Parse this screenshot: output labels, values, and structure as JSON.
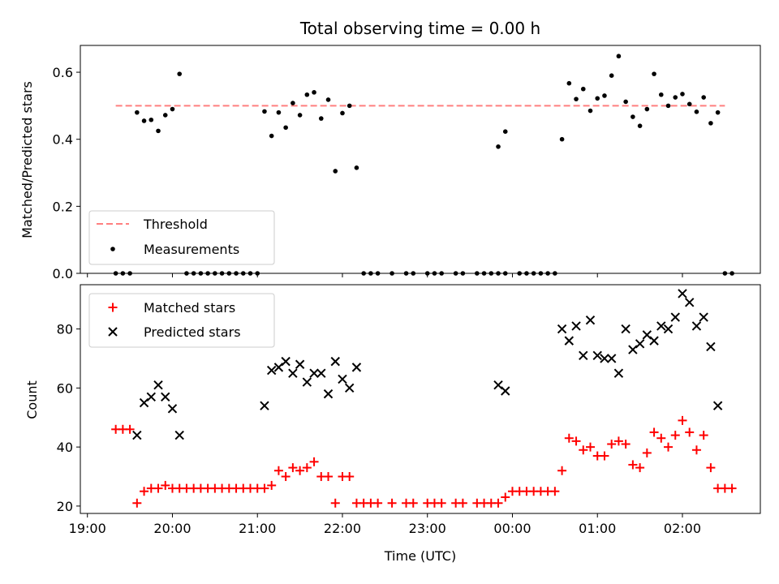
{
  "figure": {
    "title": "Total observing time = 0.00 h",
    "xlabel": "Time (UTC)"
  },
  "legend_top": {
    "threshold_label": "Threshold",
    "measurements_label": "Measurements"
  },
  "legend_bottom": {
    "matched_label": "Matched stars",
    "predicted_label": "Predicted stars"
  },
  "colors": {
    "threshold": "#ff7f7f",
    "measurements": "#000000",
    "matched": "#ff0000",
    "predicted": "#000000"
  },
  "chart_data": [
    {
      "type": "scatter",
      "title": "Total observing time = 0.00 h",
      "xlabel": "",
      "ylabel": "Matched/Predicted stars",
      "xlim": [
        "18:55",
        "02:55"
      ],
      "ylim": [
        0,
        0.68
      ],
      "yticks": [
        0.0,
        0.2,
        0.4,
        0.6
      ],
      "xticks": [
        "19:00",
        "20:00",
        "21:00",
        "22:00",
        "23:00",
        "00:00",
        "01:00",
        "02:00"
      ],
      "threshold": 0.5,
      "threshold_range": [
        "19:20",
        "02:30"
      ],
      "grid": false,
      "legend": "lower-left",
      "series": [
        {
          "name": "Measurements",
          "points": [
            [
              "19:20",
              0.0
            ],
            [
              "19:25",
              0.0
            ],
            [
              "19:30",
              0.0
            ],
            [
              "19:35",
              0.48
            ],
            [
              "19:40",
              0.455
            ],
            [
              "19:45",
              0.458
            ],
            [
              "19:50",
              0.425
            ],
            [
              "19:55",
              0.472
            ],
            [
              "20:00",
              0.49
            ],
            [
              "20:05",
              0.595
            ],
            [
              "20:10",
              0.0
            ],
            [
              "20:15",
              0.0
            ],
            [
              "20:20",
              0.0
            ],
            [
              "20:25",
              0.0
            ],
            [
              "20:30",
              0.0
            ],
            [
              "20:35",
              0.0
            ],
            [
              "20:40",
              0.0
            ],
            [
              "20:45",
              0.0
            ],
            [
              "20:50",
              0.0
            ],
            [
              "20:55",
              0.0
            ],
            [
              "21:00",
              0.0
            ],
            [
              "21:05",
              0.483
            ],
            [
              "21:10",
              0.41
            ],
            [
              "21:15",
              0.48
            ],
            [
              "21:20",
              0.435
            ],
            [
              "21:25",
              0.508
            ],
            [
              "21:30",
              0.472
            ],
            [
              "21:35",
              0.533
            ],
            [
              "21:40",
              0.54
            ],
            [
              "21:45",
              0.462
            ],
            [
              "21:50",
              0.518
            ],
            [
              "21:55",
              0.305
            ],
            [
              "22:00",
              0.478
            ],
            [
              "22:05",
              0.5
            ],
            [
              "22:10",
              0.315
            ],
            [
              "22:15",
              0.0
            ],
            [
              "22:20",
              0.0
            ],
            [
              "22:25",
              0.0
            ],
            [
              "22:35",
              0.0
            ],
            [
              "22:45",
              0.0
            ],
            [
              "22:50",
              0.0
            ],
            [
              "23:00",
              0.0
            ],
            [
              "23:05",
              0.0
            ],
            [
              "23:10",
              0.0
            ],
            [
              "23:20",
              0.0
            ],
            [
              "23:25",
              0.0
            ],
            [
              "23:35",
              0.0
            ],
            [
              "23:40",
              0.0
            ],
            [
              "23:45",
              0.0
            ],
            [
              "23:50",
              0.0
            ],
            [
              "23:55",
              0.0
            ],
            [
              "23:50",
              0.378
            ],
            [
              "23:55",
              0.423
            ],
            [
              "00:05",
              0.0
            ],
            [
              "00:10",
              0.0
            ],
            [
              "00:15",
              0.0
            ],
            [
              "00:20",
              0.0
            ],
            [
              "00:25",
              0.0
            ],
            [
              "00:30",
              0.0
            ],
            [
              "00:35",
              0.4
            ],
            [
              "00:40",
              0.567
            ],
            [
              "00:45",
              0.52
            ],
            [
              "00:50",
              0.55
            ],
            [
              "00:55",
              0.485
            ],
            [
              "01:00",
              0.522
            ],
            [
              "01:05",
              0.53
            ],
            [
              "01:10",
              0.59
            ],
            [
              "01:15",
              0.648
            ],
            [
              "01:20",
              0.512
            ],
            [
              "01:25",
              0.467
            ],
            [
              "01:30",
              0.44
            ],
            [
              "01:35",
              0.49
            ],
            [
              "01:40",
              0.595
            ],
            [
              "01:45",
              0.533
            ],
            [
              "01:50",
              0.5
            ],
            [
              "01:55",
              0.525
            ],
            [
              "02:00",
              0.535
            ],
            [
              "02:05",
              0.505
            ],
            [
              "02:10",
              0.482
            ],
            [
              "02:15",
              0.525
            ],
            [
              "02:20",
              0.448
            ],
            [
              "02:25",
              0.48
            ],
            [
              "02:30",
              0.0
            ],
            [
              "02:35",
              0.0
            ]
          ]
        }
      ]
    },
    {
      "type": "scatter",
      "xlabel": "Time (UTC)",
      "ylabel": "Count",
      "xlim": [
        "18:55",
        "02:55"
      ],
      "ylim": [
        17.5,
        95
      ],
      "yticks": [
        20,
        40,
        60,
        80
      ],
      "xticks": [
        "19:00",
        "20:00",
        "21:00",
        "22:00",
        "23:00",
        "00:00",
        "01:00",
        "02:00"
      ],
      "grid": false,
      "legend": "top-left",
      "series": [
        {
          "name": "Matched stars",
          "points": [
            [
              "19:20",
              46
            ],
            [
              "19:25",
              46
            ],
            [
              "19:30",
              46
            ],
            [
              "19:35",
              21
            ],
            [
              "19:40",
              25
            ],
            [
              "19:45",
              26
            ],
            [
              "19:50",
              26
            ],
            [
              "19:55",
              27
            ],
            [
              "20:00",
              26
            ],
            [
              "20:05",
              26
            ],
            [
              "20:10",
              26
            ],
            [
              "20:15",
              26
            ],
            [
              "20:20",
              26
            ],
            [
              "20:25",
              26
            ],
            [
              "20:30",
              26
            ],
            [
              "20:35",
              26
            ],
            [
              "20:40",
              26
            ],
            [
              "20:45",
              26
            ],
            [
              "20:50",
              26
            ],
            [
              "20:55",
              26
            ],
            [
              "21:00",
              26
            ],
            [
              "21:05",
              26
            ],
            [
              "21:10",
              27
            ],
            [
              "21:15",
              32
            ],
            [
              "21:20",
              30
            ],
            [
              "21:25",
              33
            ],
            [
              "21:30",
              32
            ],
            [
              "21:35",
              33
            ],
            [
              "21:40",
              35
            ],
            [
              "21:45",
              30
            ],
            [
              "21:50",
              30
            ],
            [
              "21:55",
              21
            ],
            [
              "22:00",
              30
            ],
            [
              "22:05",
              30
            ],
            [
              "22:10",
              21
            ],
            [
              "22:15",
              21
            ],
            [
              "22:20",
              21
            ],
            [
              "22:25",
              21
            ],
            [
              "22:35",
              21
            ],
            [
              "22:45",
              21
            ],
            [
              "22:50",
              21
            ],
            [
              "23:00",
              21
            ],
            [
              "23:05",
              21
            ],
            [
              "23:10",
              21
            ],
            [
              "23:20",
              21
            ],
            [
              "23:25",
              21
            ],
            [
              "23:35",
              21
            ],
            [
              "23:40",
              21
            ],
            [
              "23:45",
              21
            ],
            [
              "23:50",
              21
            ],
            [
              "23:55",
              23
            ],
            [
              "00:00",
              25
            ],
            [
              "00:05",
              25
            ],
            [
              "00:10",
              25
            ],
            [
              "00:15",
              25
            ],
            [
              "00:20",
              25
            ],
            [
              "00:25",
              25
            ],
            [
              "00:30",
              25
            ],
            [
              "00:35",
              32
            ],
            [
              "00:40",
              43
            ],
            [
              "00:45",
              42
            ],
            [
              "00:50",
              39
            ],
            [
              "00:55",
              40
            ],
            [
              "01:00",
              37
            ],
            [
              "01:05",
              37
            ],
            [
              "01:10",
              41
            ],
            [
              "01:15",
              42
            ],
            [
              "01:20",
              41
            ],
            [
              "01:25",
              34
            ],
            [
              "01:30",
              33
            ],
            [
              "01:35",
              38
            ],
            [
              "01:40",
              45
            ],
            [
              "01:45",
              43
            ],
            [
              "01:50",
              40
            ],
            [
              "01:55",
              44
            ],
            [
              "02:00",
              49
            ],
            [
              "02:05",
              45
            ],
            [
              "02:10",
              39
            ],
            [
              "02:15",
              44
            ],
            [
              "02:20",
              33
            ],
            [
              "02:25",
              26
            ],
            [
              "02:30",
              26
            ],
            [
              "02:35",
              26
            ]
          ]
        },
        {
          "name": "Predicted stars",
          "points": [
            [
              "19:35",
              44
            ],
            [
              "19:40",
              55
            ],
            [
              "19:45",
              57
            ],
            [
              "19:50",
              61
            ],
            [
              "19:55",
              57
            ],
            [
              "20:00",
              53
            ],
            [
              "20:05",
              44
            ],
            [
              "21:05",
              54
            ],
            [
              "21:10",
              66
            ],
            [
              "21:15",
              67
            ],
            [
              "21:20",
              69
            ],
            [
              "21:25",
              65
            ],
            [
              "21:30",
              68
            ],
            [
              "21:35",
              62
            ],
            [
              "21:40",
              65
            ],
            [
              "21:45",
              65
            ],
            [
              "21:50",
              58
            ],
            [
              "21:55",
              69
            ],
            [
              "22:00",
              63
            ],
            [
              "22:05",
              60
            ],
            [
              "22:10",
              67
            ],
            [
              "23:50",
              61
            ],
            [
              "23:55",
              59
            ],
            [
              "00:35",
              80
            ],
            [
              "00:40",
              76
            ],
            [
              "00:45",
              81
            ],
            [
              "00:50",
              71
            ],
            [
              "00:55",
              83
            ],
            [
              "01:00",
              71
            ],
            [
              "01:05",
              70
            ],
            [
              "01:10",
              70
            ],
            [
              "01:15",
              65
            ],
            [
              "01:20",
              80
            ],
            [
              "01:25",
              73
            ],
            [
              "01:30",
              75
            ],
            [
              "01:35",
              78
            ],
            [
              "01:40",
              76
            ],
            [
              "01:45",
              81
            ],
            [
              "01:50",
              80
            ],
            [
              "01:55",
              84
            ],
            [
              "02:00",
              92
            ],
            [
              "02:05",
              89
            ],
            [
              "02:10",
              81
            ],
            [
              "02:15",
              84
            ],
            [
              "02:20",
              74
            ],
            [
              "02:25",
              54
            ]
          ]
        }
      ]
    }
  ]
}
